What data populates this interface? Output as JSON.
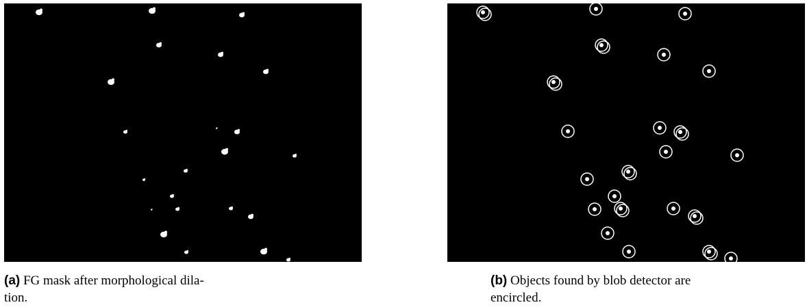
{
  "figure": {
    "subfigures": [
      {
        "label": "(a)",
        "caption_lines": [
          "FG mask after morphological dila-",
          "tion."
        ]
      },
      {
        "label": "(b)",
        "caption_lines": [
          "Objects found by blob detector are",
          "encircled."
        ]
      }
    ]
  }
}
